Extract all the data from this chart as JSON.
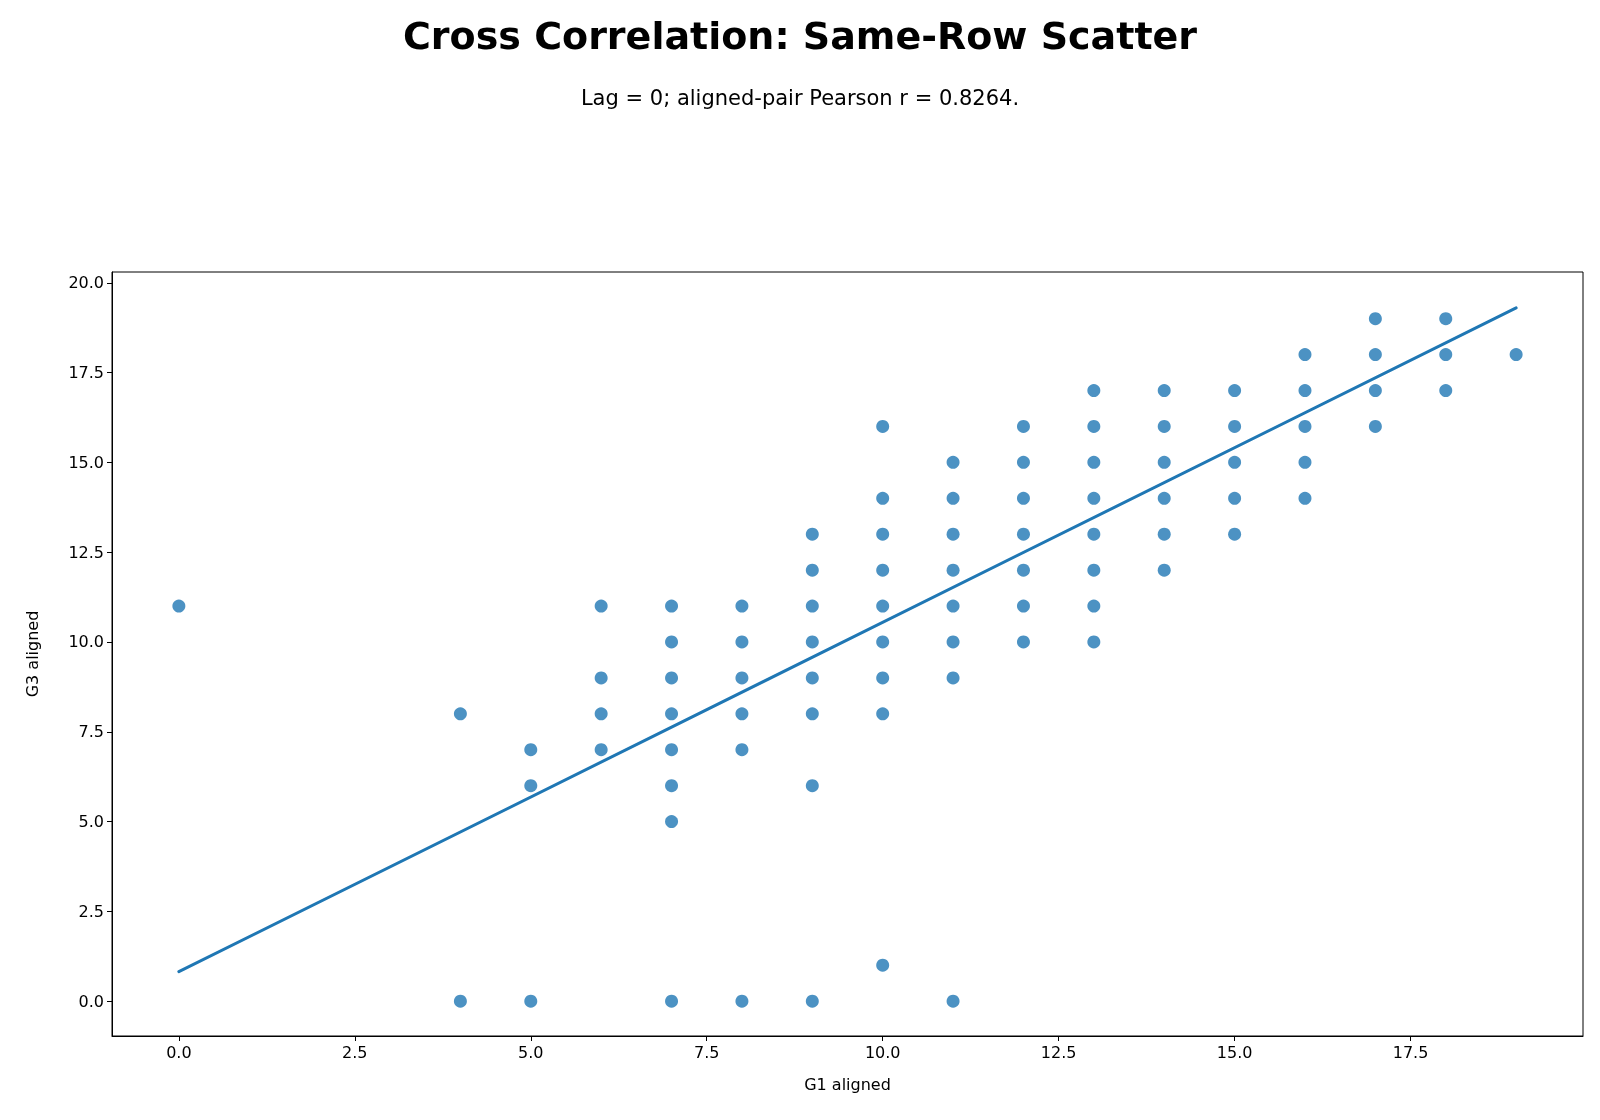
{
  "chart_data": {
    "type": "scatter",
    "title": "Cross Correlation: Same-Row Scatter",
    "subtitle": "Lag = 0; aligned-pair Pearson r = 0.8264.",
    "xlabel": "G1 aligned",
    "ylabel": "G3 aligned",
    "xlim": [
      -0.95,
      19.95
    ],
    "ylim": [
      -0.97,
      20.3
    ],
    "xticks": [
      {
        "value": 0,
        "label": "0.0"
      },
      {
        "value": 2.5,
        "label": "2.5"
      },
      {
        "value": 5,
        "label": "5.0"
      },
      {
        "value": 7.5,
        "label": "7.5"
      },
      {
        "value": 10,
        "label": "10.0"
      },
      {
        "value": 12.5,
        "label": "12.5"
      },
      {
        "value": 15,
        "label": "15.0"
      },
      {
        "value": 17.5,
        "label": "17.5"
      }
    ],
    "yticks": [
      {
        "value": 0,
        "label": "0.0"
      },
      {
        "value": 2.5,
        "label": "2.5"
      },
      {
        "value": 5,
        "label": "5.0"
      },
      {
        "value": 7.5,
        "label": "7.5"
      },
      {
        "value": 10,
        "label": "10.0"
      },
      {
        "value": 12.5,
        "label": "12.5"
      },
      {
        "value": 15,
        "label": "15.0"
      },
      {
        "value": 17.5,
        "label": "17.5"
      },
      {
        "value": 20,
        "label": "20.0"
      }
    ],
    "grid": false,
    "series": [
      {
        "color": "#1f77b4",
        "marker": "circle",
        "x": [
          0,
          4,
          4,
          5,
          5,
          5,
          6,
          6,
          6,
          6,
          7,
          7,
          7,
          7,
          7,
          7,
          7,
          7,
          8,
          8,
          8,
          8,
          8,
          8,
          9,
          9,
          9,
          9,
          9,
          9,
          9,
          9,
          10,
          10,
          10,
          10,
          10,
          10,
          10,
          10,
          10,
          11,
          11,
          11,
          11,
          11,
          11,
          11,
          11,
          12,
          12,
          12,
          12,
          12,
          12,
          12,
          13,
          13,
          13,
          13,
          13,
          13,
          13,
          13,
          14,
          14,
          14,
          14,
          14,
          14,
          15,
          15,
          15,
          15,
          15,
          16,
          16,
          16,
          16,
          16,
          17,
          17,
          17,
          17,
          18,
          18,
          18,
          19
        ],
        "values": [
          11,
          8,
          0,
          7,
          6,
          0,
          11,
          9,
          8,
          7,
          11,
          10,
          9,
          8,
          7,
          6,
          5,
          0,
          11,
          10,
          9,
          8,
          7,
          0,
          13,
          12,
          11,
          10,
          9,
          8,
          6,
          0,
          16,
          14,
          13,
          12,
          11,
          10,
          9,
          8,
          1,
          15,
          14,
          13,
          12,
          11,
          10,
          9,
          0,
          16,
          15,
          14,
          13,
          12,
          11,
          10,
          17,
          16,
          15,
          14,
          13,
          12,
          11,
          10,
          17,
          16,
          15,
          14,
          13,
          12,
          17,
          16,
          15,
          14,
          13,
          18,
          17,
          16,
          15,
          14,
          19,
          18,
          17,
          16,
          19,
          18,
          17,
          18
        ]
      },
      {
        "type": "line",
        "color": "#1f77b4",
        "line_style": "solid",
        "x": [
          0,
          19
        ],
        "values": [
          0.82,
          19.3
        ]
      }
    ]
  }
}
